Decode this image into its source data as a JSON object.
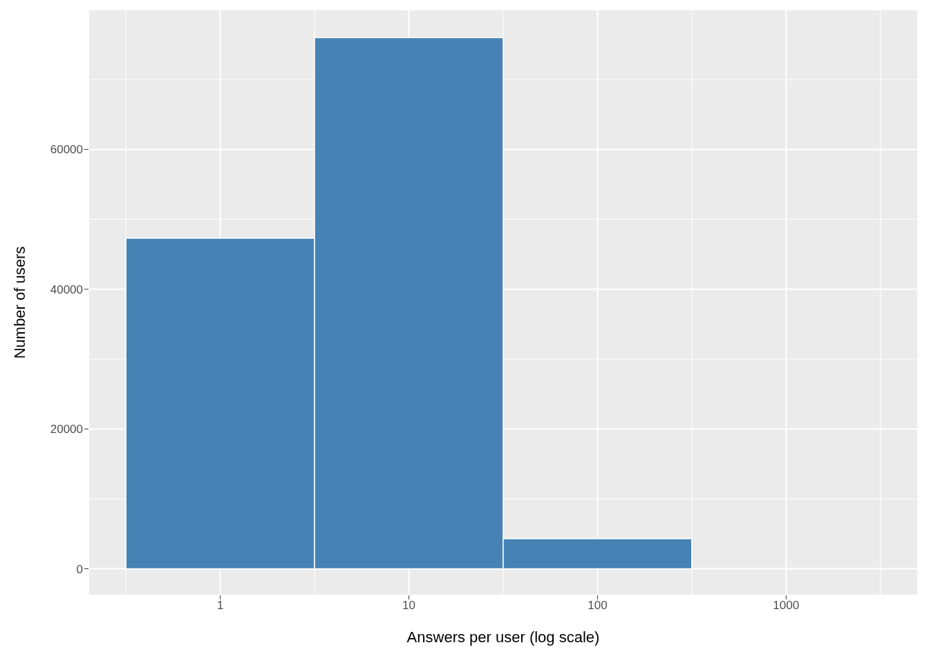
{
  "chart_data": {
    "type": "histogram",
    "xlabel": "Answers per user (log scale)",
    "ylabel": "Number of users",
    "bins": [
      0.316,
      3.16,
      31.6,
      316,
      3160
    ],
    "values": [
      47300,
      76000,
      4300,
      0
    ],
    "color": "#4682b4",
    "log": "x",
    "xlim": [
      0.2,
      5000
    ],
    "xticks": [
      1,
      10,
      100,
      1000
    ],
    "ylim": [
      -3800,
      80000
    ],
    "yticks": [
      0,
      20000,
      40000,
      60000
    ],
    "grid": true
  }
}
